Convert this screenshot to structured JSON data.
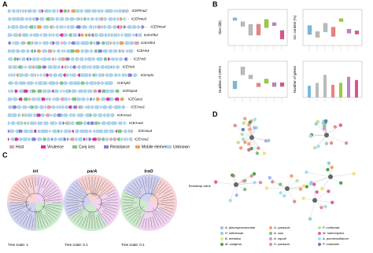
{
  "panel_a": {
    "label": "A",
    "rows": [
      "ICEPmu2",
      "ICEPmu3",
      "ICEPmu4",
      "ICEAhh2",
      "ICEAhh3",
      "ICEHs4",
      "ICEHs5",
      "ICEHs6",
      "ICEApl1",
      "ICEApl2",
      "ICEGpa3",
      "ICEGpa1",
      "ICEAsu1",
      "ICEAsu3",
      "ICEAsu5",
      "ICEAsu4",
      "ICEAsu2"
    ],
    "legend": [
      "Host",
      "Virulence",
      "Conj ices",
      "Resistance",
      "Mobile elements",
      "Unknown"
    ]
  },
  "panel_b": {
    "label": "B",
    "plots": [
      {
        "y_label": "Size (kb)"
      },
      {
        "y_label": "GC content (%)"
      },
      {
        "y_label": "Number of ORFs"
      },
      {
        "y_label": "Number of genes"
      }
    ]
  },
  "panel_c": {
    "label": "C",
    "trees": [
      {
        "title": "int",
        "scale": "Tree scale: 1"
      },
      {
        "title": "parA",
        "scale": "Tree scale: 0.1"
      },
      {
        "title": "traG",
        "scale": "Tree scale: 0.1"
      }
    ],
    "legend_title": "Bootstrap value"
  },
  "panel_d": {
    "label": "D",
    "legend": [
      "A. pleuropneumoniae",
      "G. parasuis",
      "P. multocida",
      "H. influenzae",
      "A. suis",
      "M. haemolytica",
      "B. trehalosi",
      "A. equuli",
      "A. porcitonsillarum",
      "M. varigena",
      "H. parasuis",
      "P. mutocida"
    ]
  }
}
